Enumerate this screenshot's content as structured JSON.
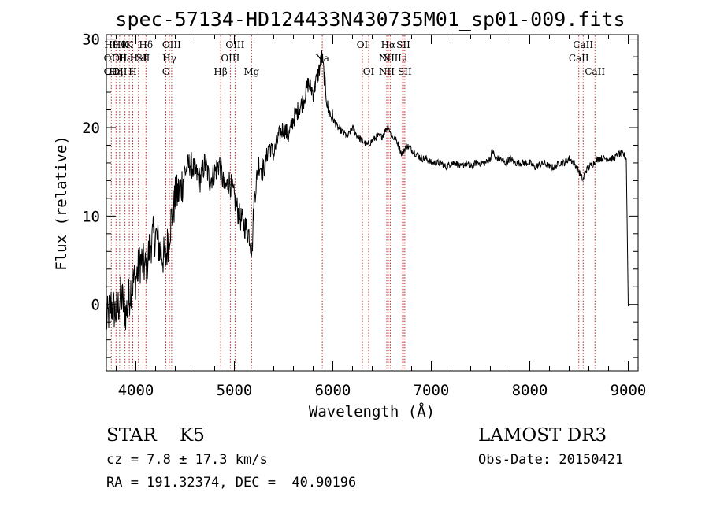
{
  "chart_data": {
    "type": "line",
    "title": "spec-57134-HD124433N430735M01_sp01-009.fits",
    "xlabel": "Wavelength (Å)",
    "ylabel": "Flux (relative)",
    "xlim": [
      3700,
      9100
    ],
    "ylim": [
      -7.5,
      30.5
    ],
    "xticks": [
      "4000",
      "5000",
      "6000",
      "7000",
      "8000",
      "9000"
    ],
    "yticks": [
      "0",
      "10",
      "20",
      "30"
    ],
    "series": [
      {
        "name": "spectrum",
        "x": [
          3700,
          3750,
          3800,
          3850,
          3900,
          3950,
          4000,
          4050,
          4100,
          4150,
          4200,
          4250,
          4300,
          4350,
          4400,
          4450,
          4500,
          4550,
          4600,
          4650,
          4700,
          4750,
          4800,
          4850,
          4900,
          4950,
          5000,
          5050,
          5100,
          5150,
          5180,
          5200,
          5250,
          5300,
          5350,
          5400,
          5450,
          5500,
          5550,
          5600,
          5650,
          5700,
          5750,
          5800,
          5850,
          5890,
          5920,
          5950,
          6000,
          6050,
          6100,
          6150,
          6200,
          6250,
          6300,
          6350,
          6400,
          6450,
          6500,
          6550,
          6563,
          6580,
          6600,
          6650,
          6700,
          6750,
          6800,
          6850,
          6900,
          6950,
          7000,
          7050,
          7100,
          7150,
          7200,
          7250,
          7300,
          7350,
          7400,
          7450,
          7500,
          7550,
          7600,
          7620,
          7650,
          7700,
          7750,
          7800,
          7850,
          7900,
          7950,
          8000,
          8050,
          8100,
          8150,
          8200,
          8250,
          8300,
          8350,
          8400,
          8450,
          8500,
          8542,
          8560,
          8600,
          8650,
          8700,
          8750,
          8800,
          8850,
          8900,
          8950,
          8980,
          9000
        ],
        "y": [
          -2,
          0,
          -1,
          1,
          -1,
          2,
          3,
          5,
          4,
          7,
          8,
          6,
          5,
          9,
          12,
          13,
          15,
          16,
          15,
          14,
          16,
          14,
          15,
          16,
          13,
          14,
          12,
          10,
          9,
          8,
          6,
          12,
          16,
          15,
          18,
          17,
          19,
          20,
          19,
          21,
          22,
          23,
          25,
          24,
          26,
          28,
          25,
          22,
          21,
          20,
          19.5,
          19,
          20,
          19,
          18.5,
          18,
          18.5,
          19,
          19,
          20,
          20.3,
          19.5,
          19,
          18.5,
          17,
          18,
          17.5,
          17,
          16.5,
          16.5,
          16,
          16,
          16,
          15.5,
          16,
          16,
          15.5,
          16,
          15.5,
          16,
          16,
          16,
          16.5,
          17.5,
          16.5,
          16.5,
          16,
          16.5,
          16,
          16,
          16,
          16,
          15.5,
          15.8,
          16,
          15.5,
          15.5,
          16,
          16,
          16.5,
          16,
          15,
          14,
          15,
          15.5,
          16,
          16.5,
          16.5,
          16.5,
          16.5,
          17,
          17,
          16.5,
          -0.2
        ]
      }
    ],
    "lines": [
      {
        "w": 3750,
        "labels": [
          "Hθ",
          "OII",
          "OII"
        ],
        "rows": [
          0,
          1,
          2
        ]
      },
      {
        "w": 3798,
        "labels": [
          "Hη"
        ],
        "rows": [
          2
        ]
      },
      {
        "w": 3835,
        "labels": [
          "Hθ",
          "OII",
          "OII"
        ],
        "rows": [
          0,
          1,
          2
        ]
      },
      {
        "w": 3889,
        "labels": [
          "Hε",
          "K"
        ],
        "rows": [
          1,
          0
        ]
      },
      {
        "w": 3933,
        "labels": [
          "K"
        ],
        "rows": [
          0
        ]
      },
      {
        "w": 3968,
        "labels": [
          "H"
        ],
        "rows": [
          2
        ]
      },
      {
        "w": 4026,
        "labels": [
          "HeI"
        ],
        "rows": [
          1
        ]
      },
      {
        "w": 4072,
        "labels": [
          "SII"
        ],
        "rows": [
          1
        ]
      },
      {
        "w": 4102,
        "labels": [
          "Hδ"
        ],
        "rows": [
          0
        ]
      },
      {
        "w": 4304,
        "labels": [
          "G"
        ],
        "rows": [
          2
        ]
      },
      {
        "w": 4340,
        "labels": [
          "Hγ"
        ],
        "rows": [
          1
        ]
      },
      {
        "w": 4363,
        "labels": [
          "OIII"
        ],
        "rows": [
          0
        ]
      },
      {
        "w": 4861,
        "labels": [
          "Hβ"
        ],
        "rows": [
          2
        ]
      },
      {
        "w": 4959,
        "labels": [
          "OIII"
        ],
        "rows": [
          1
        ]
      },
      {
        "w": 5007,
        "labels": [
          "OIII"
        ],
        "rows": [
          0
        ]
      },
      {
        "w": 5175,
        "labels": [
          "Mg"
        ],
        "rows": [
          2
        ]
      },
      {
        "w": 5893,
        "labels": [
          "Na"
        ],
        "rows": [
          1
        ]
      },
      {
        "w": 6300,
        "labels": [
          "OI"
        ],
        "rows": [
          0
        ]
      },
      {
        "w": 6364,
        "labels": [
          "OI"
        ],
        "rows": [
          2
        ]
      },
      {
        "w": 6548,
        "labels": [
          "NII",
          "NII"
        ],
        "rows": [
          1,
          2
        ]
      },
      {
        "w": 6563,
        "labels": [
          "Hα"
        ],
        "rows": [
          0
        ]
      },
      {
        "w": 6583,
        "labels": [
          "NII"
        ],
        "rows": [
          1
        ]
      },
      {
        "w": 6708,
        "labels": [
          "Li"
        ],
        "rows": [
          1
        ]
      },
      {
        "w": 6716,
        "labels": [
          "SII"
        ],
        "rows": [
          0
        ]
      },
      {
        "w": 6731,
        "labels": [
          "SII"
        ],
        "rows": [
          2
        ]
      },
      {
        "w": 8498,
        "labels": [
          "CaII"
        ],
        "rows": [
          1
        ]
      },
      {
        "w": 8542,
        "labels": [
          "CaII"
        ],
        "rows": [
          0
        ]
      },
      {
        "w": 8662,
        "labels": [
          "CaII"
        ],
        "rows": [
          2
        ]
      }
    ]
  },
  "footer": {
    "classification": "STAR    K5",
    "survey": "LAMOST DR3",
    "cz": "cz = 7.8 ± 17.3 km/s",
    "obs_date": "Obs-Date: 20150421",
    "coords": "RA = 191.32374, DEC =  40.90196"
  },
  "colors": {
    "line_marker": "#b22222",
    "spectrum": "#000000",
    "axes": "#000000"
  }
}
